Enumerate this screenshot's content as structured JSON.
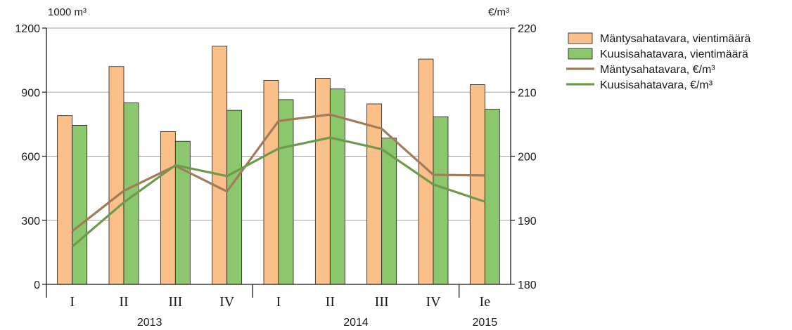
{
  "chart_data": {
    "type": "bar",
    "left_unit": "1000 m³",
    "right_unit": "€/m³",
    "ylim_left": [
      0,
      1200
    ],
    "ylim_right": [
      180,
      220
    ],
    "yticks_left": [
      "0",
      "300",
      "600",
      "900",
      "1200"
    ],
    "yticks_right": [
      "180",
      "190",
      "200",
      "210",
      "220"
    ],
    "grid": true,
    "categories": [
      "I",
      "II",
      "III",
      "IV",
      "I",
      "II",
      "III",
      "IV",
      "Ie"
    ],
    "years": [
      {
        "label": "2013",
        "start": 0,
        "end": 3
      },
      {
        "label": "2014",
        "start": 4,
        "end": 7
      },
      {
        "label": "2015",
        "start": 8,
        "end": 8
      }
    ],
    "series": [
      {
        "name": "Mäntysahatavara, vientimäärä",
        "kind": "bar",
        "axis": "left",
        "color": "#fbbf8a",
        "values": [
          790,
          1020,
          715,
          1115,
          955,
          965,
          845,
          1055,
          935
        ]
      },
      {
        "name": "Kuusisahatavara, vientimäärä",
        "kind": "bar",
        "axis": "left",
        "color": "#8cc76d",
        "values": [
          745,
          850,
          670,
          815,
          865,
          915,
          685,
          785,
          820
        ]
      },
      {
        "name": "Mäntysahatavara, €/m³",
        "kind": "line",
        "axis": "right",
        "color": "#a07d58",
        "values": [
          188.3,
          194.6,
          198.5,
          194.5,
          205.5,
          206.5,
          204.3,
          197.1,
          197.0
        ]
      },
      {
        "name": "Kuusisahatavara, €/m³",
        "kind": "line",
        "axis": "right",
        "color": "#6e9a4c",
        "values": [
          185.9,
          192.8,
          198.6,
          196.9,
          201.2,
          202.9,
          201.1,
          195.6,
          192.9
        ]
      }
    ]
  }
}
